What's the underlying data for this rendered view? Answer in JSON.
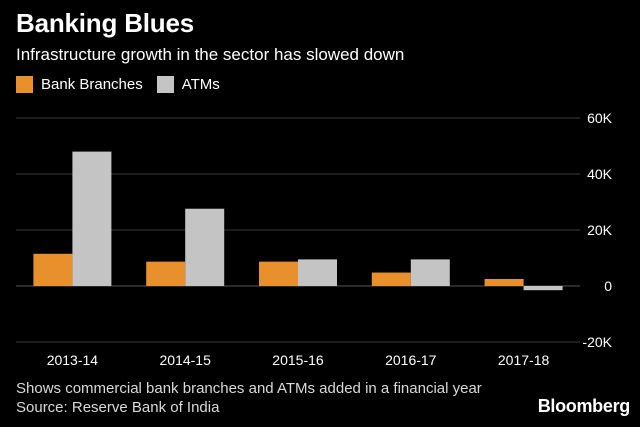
{
  "header": {
    "title": "Banking Blues",
    "subtitle": "Infrastructure growth in the sector has slowed down"
  },
  "footer": {
    "note": "Shows commercial bank branches and ATMs added in a financial year",
    "source": "Source: Reserve Bank of India",
    "brand": "Bloomberg"
  },
  "colors": {
    "background": "#000000",
    "branches": "#e8912c",
    "atms": "#c4c4c4",
    "grid": "#3a3a3a"
  },
  "chart_data": {
    "type": "bar",
    "title": "Banking Blues",
    "subtitle": "Infrastructure growth in the sector has slowed down",
    "categories": [
      "2013-14",
      "2014-15",
      "2015-16",
      "2016-17",
      "2017-18"
    ],
    "series": [
      {
        "name": "Bank Branches",
        "color": "#e8912c",
        "values": [
          11500,
          8700,
          8700,
          4800,
          2500
        ]
      },
      {
        "name": "ATMs",
        "color": "#c4c4c4",
        "values": [
          48000,
          27600,
          9500,
          9500,
          -1500
        ]
      }
    ],
    "ylim": [
      -20000,
      60000
    ],
    "yticks": [
      -20000,
      0,
      20000,
      40000,
      60000
    ],
    "ytick_labels": [
      "-20K",
      "0",
      "20K",
      "40K",
      "60K"
    ],
    "xlabel": "",
    "ylabel": "",
    "grid": true,
    "legend_position": "top-left"
  }
}
